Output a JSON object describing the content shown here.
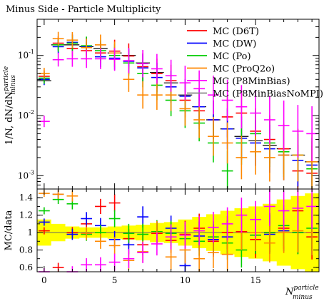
{
  "chart_data": {
    "type": "scatter",
    "title": "Minus Side - Particle Multiplicity",
    "upper": {
      "ylabel": "1/N, dN/dN",
      "ylabel_sup": "particle",
      "ylabel_sub": "minus",
      "yscale": "log",
      "ylim": [
        0.0006,
        0.4
      ],
      "ytick_labels": [
        "10^-1",
        "10^-2",
        "10^-3"
      ]
    },
    "lower": {
      "ylabel": "MC/data",
      "ylim": [
        0.55,
        1.5
      ],
      "ytick_labels": [
        "1.4",
        "1.2",
        "1",
        "0.8",
        "0.6"
      ]
    },
    "xlabel": "N",
    "xlabel_sup": "particle",
    "xlabel_sub": "minus",
    "xlim": [
      -0.5,
      19.5
    ],
    "xtick_labels": [
      "0",
      "5",
      "10",
      "15"
    ],
    "legend_position": "top-right",
    "series": [
      {
        "name": "MC (D6T)",
        "color": "#ff0000",
        "y": [
          0.045,
          0.16,
          0.13,
          0.12,
          0.11,
          0.118,
          0.098,
          0.065,
          0.05,
          0.038,
          0.018,
          0.012,
          0.0085,
          0.0095,
          0.011,
          0.0055,
          0.004,
          0.0028,
          0.0012,
          0.0011
        ],
        "ratio": [
          1.02,
          0.6,
          1.0,
          1.1,
          1.3,
          1.34,
          0.93,
          0.86,
          0.99,
          0.91,
          0.98,
          1.05,
          0.9,
          1.0,
          1.01,
          0.92,
          1.0,
          1.05,
          1.25,
          0.95
        ]
      },
      {
        "name": "MC (DW)",
        "color": "#0000ff",
        "y": [
          0.04,
          0.14,
          0.165,
          0.14,
          0.095,
          0.09,
          0.08,
          0.062,
          0.043,
          0.03,
          0.021,
          0.014,
          0.0085,
          0.006,
          0.0042,
          0.0035,
          0.0028,
          0.0022,
          0.0018,
          0.0015
        ],
        "ratio": [
          1.12,
          1.44,
          0.98,
          1.16,
          1.08,
          0.92,
          0.86,
          1.18,
          1.0,
          1.05,
          0.62,
          0.96,
          0.92,
          0.95,
          1.0,
          0.97,
          0.98,
          1.02,
          1.0,
          1.0
        ]
      },
      {
        "name": "MC (Po)",
        "color": "#00cc00",
        "y": [
          0.042,
          0.15,
          0.16,
          0.145,
          0.12,
          0.1,
          0.075,
          0.05,
          0.032,
          0.018,
          0.012,
          0.0075,
          0.0035,
          0.0012,
          0.0035,
          0.005,
          0.0035,
          0.0025,
          0.0022,
          0.0013
        ],
        "ratio": [
          1.25,
          1.38,
          1.33,
          0.98,
          1.0,
          1.16,
          0.99,
          0.98,
          1.01,
          0.99,
          0.93,
          0.9,
          0.95,
          0.88,
          0.8,
          0.97,
          1.0,
          1.08,
          1.0,
          1.05
        ]
      },
      {
        "name": "MC (ProQ2o)",
        "color": "#ff8800",
        "y": [
          0.05,
          0.19,
          0.18,
          0.135,
          0.15,
          0.11,
          0.04,
          0.022,
          0.022,
          0.022,
          0.013,
          0.0085,
          0.0045,
          0.0035,
          0.002,
          0.0025,
          0.002,
          0.0022,
          0.0022,
          0.0017
        ],
        "ratio": [
          1.45,
          1.44,
          1.42,
          0.99,
          0.9,
          0.85,
          0.68,
          0.78,
          1.0,
          0.72,
          0.8,
          0.7,
          0.77,
          0.75,
          1.0,
          1.0,
          0.88,
          1.0,
          1.02,
          1.0
        ]
      },
      {
        "name": "MC (P8MinBias)",
        "color": "#ff00ff",
        "y": [
          0.008,
          0.085,
          0.088,
          0.088,
          0.088,
          0.086,
          0.082,
          0.073,
          0.06,
          0.046,
          0.035,
          0.028,
          0.022,
          0.018,
          0.014,
          0.011,
          0.0085,
          0.0068,
          0.0055,
          0.005
        ],
        "ratio": [
          0.55,
          0.53,
          0.55,
          0.63,
          0.63,
          0.66,
          0.7,
          0.77,
          0.87,
          0.95,
          0.97,
          1.02,
          1.06,
          1.1,
          1.2,
          1.15,
          1.3,
          1.25,
          1.28,
          1.3
        ]
      },
      {
        "name": "MC (P8MinBiasNoMPI)",
        "color": "#888888",
        "y": [],
        "ratio": []
      }
    ],
    "data_reference": {
      "y": [
        0.038,
        0.15,
        0.15,
        0.14,
        0.13,
        0.11,
        0.1,
        0.075,
        0.052,
        0.035,
        0.022,
        0.014,
        0.0085,
        0.006,
        0.0045,
        0.0038,
        0.0032,
        0.0028,
        0.0022,
        0.0017
      ],
      "band_halfwidth": [
        0.15,
        0.1,
        0.07,
        0.06,
        0.06,
        0.07,
        0.08,
        0.09,
        0.11,
        0.12,
        0.15,
        0.18,
        0.21,
        0.25,
        0.28,
        0.3,
        0.33,
        0.38,
        0.42,
        0.45
      ]
    }
  }
}
